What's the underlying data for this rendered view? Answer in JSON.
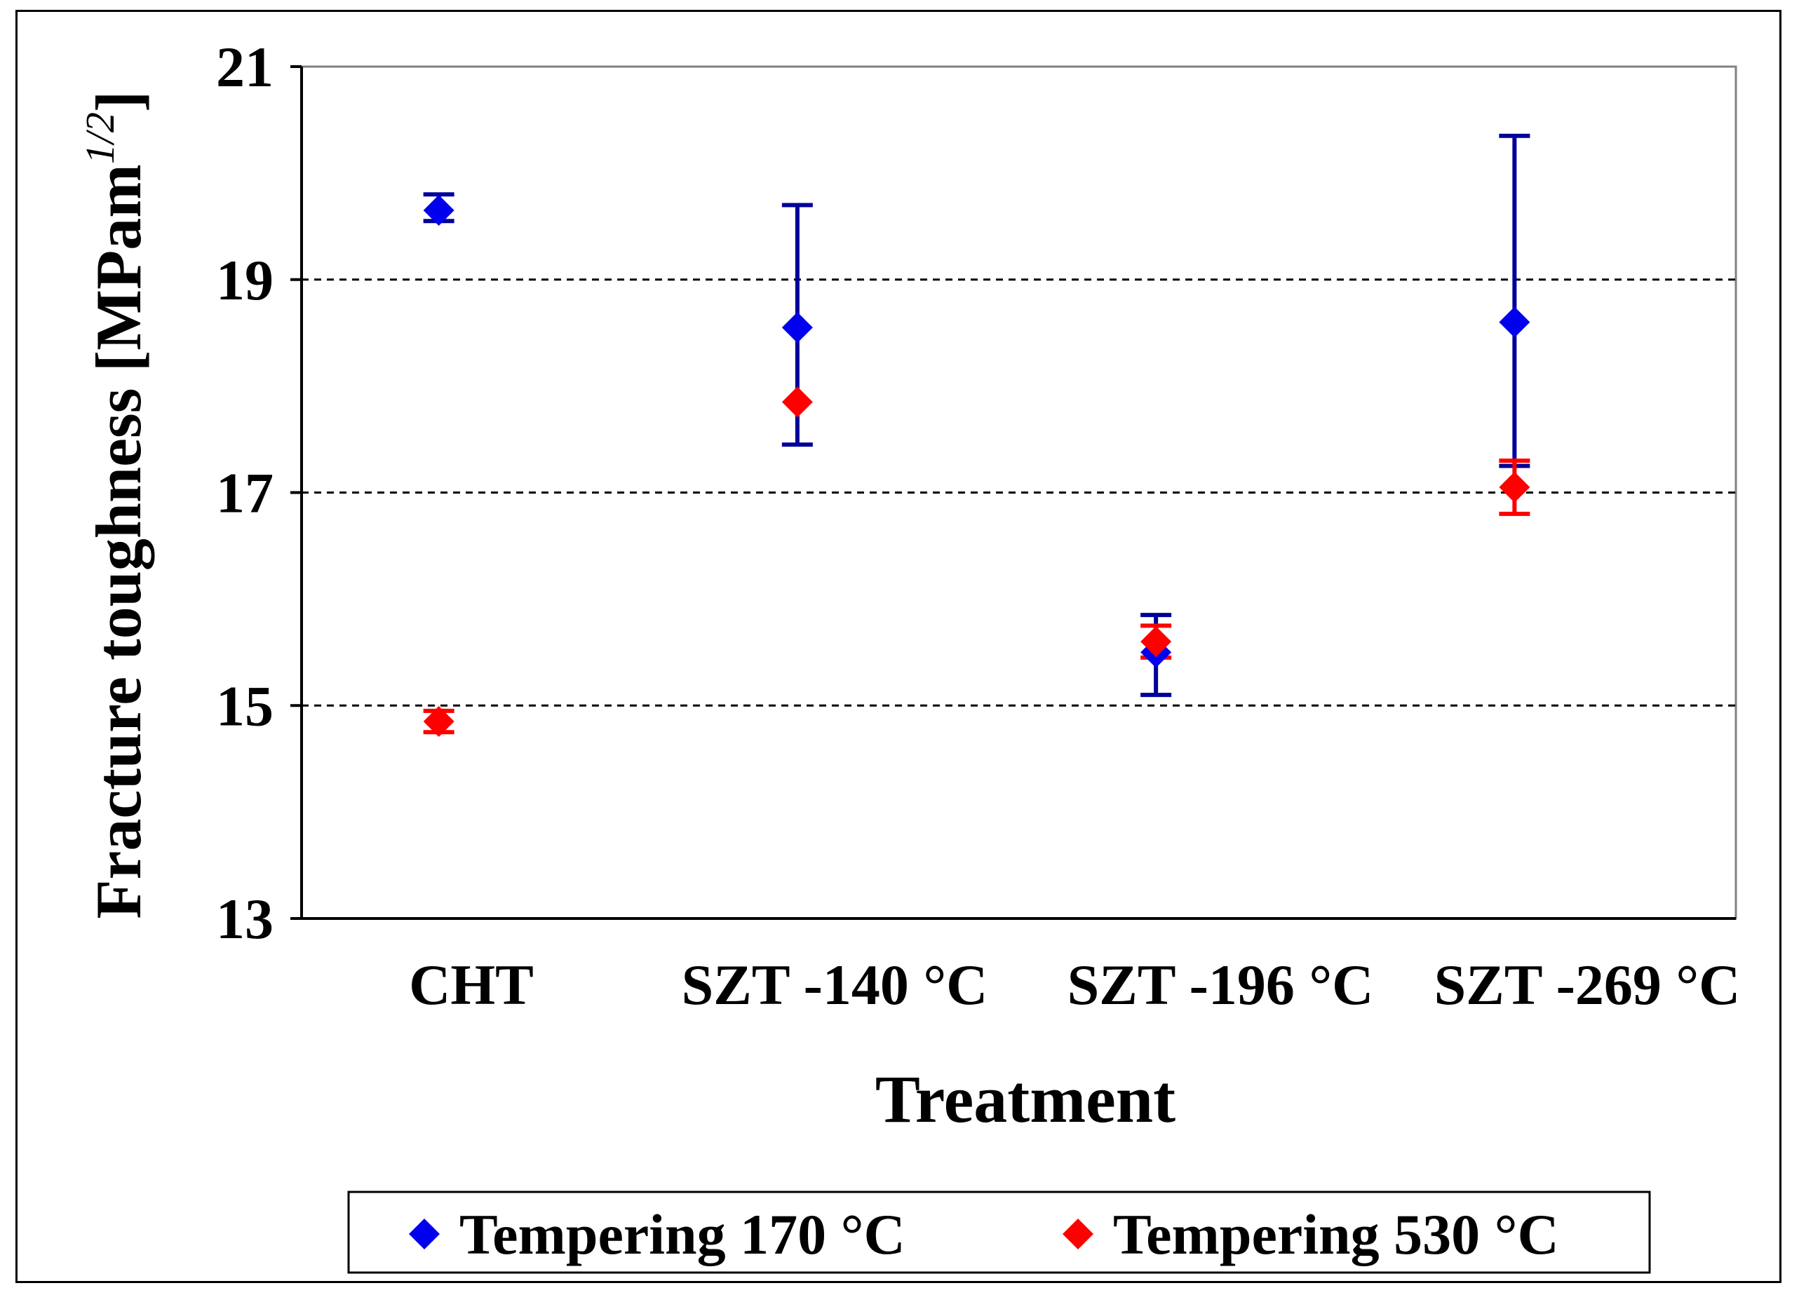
{
  "chart_data": {
    "type": "scatter",
    "title": "",
    "xlabel": "Treatment",
    "ylabel": "Fracture toughness [MPam",
    "ylabel_superscript": "1/2",
    "ylabel_close": "]",
    "ylim": [
      13,
      21
    ],
    "yticks": [
      13,
      15,
      17,
      19,
      21
    ],
    "gridlines": [
      15,
      17,
      19
    ],
    "categories": [
      "CHT",
      "SZT  -140 °C",
      "SZT  -196 °C",
      "SZT  -269 °C"
    ],
    "series": [
      {
        "name": "Tempering 170 °C",
        "color": "#0000ee",
        "error_color": "#000099",
        "values": [
          19.65,
          18.55,
          15.5,
          18.6
        ],
        "err_low": [
          19.55,
          17.45,
          15.1,
          17.25
        ],
        "err_high": [
          19.8,
          19.7,
          15.85,
          20.35
        ]
      },
      {
        "name": "Tempering 530 °C",
        "color": "#ff0000",
        "error_color": "#ff0000",
        "values": [
          14.85,
          17.85,
          15.6,
          17.05
        ],
        "err_low": [
          14.75,
          17.85,
          15.45,
          16.8
        ],
        "err_high": [
          14.95,
          17.85,
          15.75,
          17.3
        ]
      }
    ],
    "legend": {
      "position": "bottom",
      "entries": [
        "Tempering 170 °C",
        "Tempering 530 °C"
      ]
    }
  }
}
